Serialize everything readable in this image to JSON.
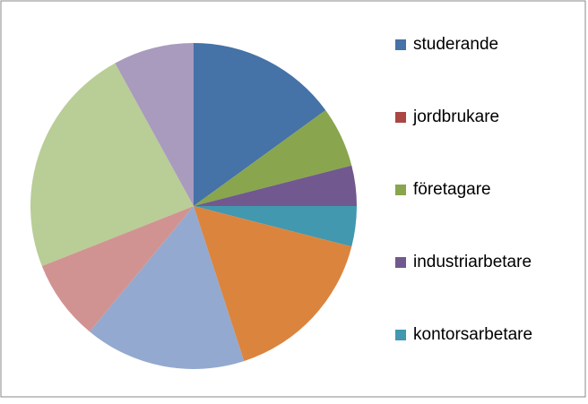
{
  "chart_data": {
    "type": "pie",
    "categories": [
      "studerande",
      "jordbrukare",
      "företagare",
      "industriarbetare",
      "kontorsarbetare",
      null,
      null,
      null,
      null,
      null
    ],
    "values": [
      15,
      0,
      6,
      4,
      4,
      16,
      16,
      8,
      23,
      8
    ],
    "colors": [
      "#4572a7",
      "#aa4643",
      "#89a54e",
      "#71588f",
      "#4198af",
      "#db843d",
      "#93a9cf",
      "#d19392",
      "#b9cd96",
      "#a99bbd"
    ],
    "legend": "right"
  }
}
